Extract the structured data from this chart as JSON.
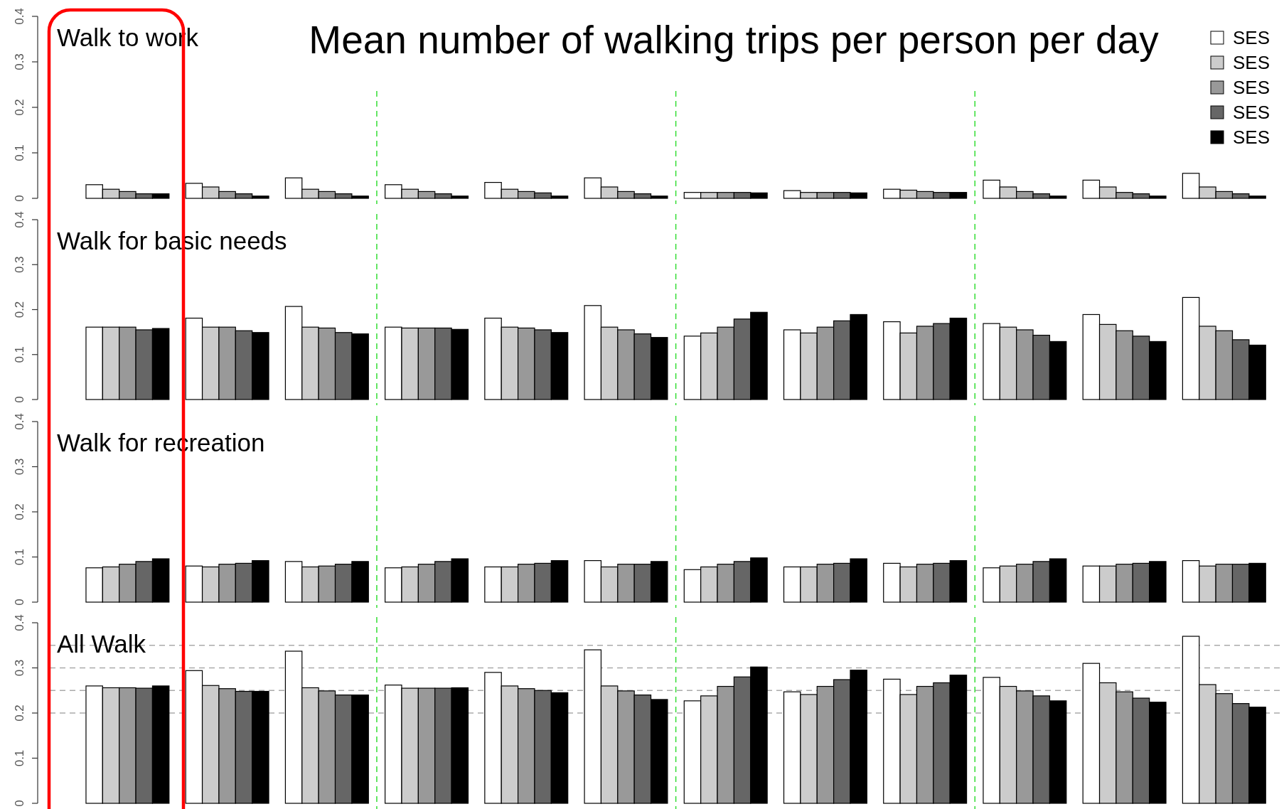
{
  "chart_data": [
    {
      "type": "bar",
      "title": "Walk to work",
      "annotations": [
        "Mean number of walking trips per person per day"
      ],
      "categories": [
        null,
        null,
        null,
        null,
        null,
        null,
        null,
        null,
        null,
        null,
        null,
        null
      ],
      "ylim": [
        0,
        0.4
      ],
      "yticks": [
        0,
        0.1,
        0.2,
        0.3,
        0.4
      ],
      "legend": "top right",
      "series": [
        {
          "name": "SES",
          "color": "#ffffff",
          "values": [
            0.03,
            0.033,
            0.045,
            0.03,
            0.035,
            0.045,
            0.013,
            0.017,
            0.02,
            0.04,
            0.04,
            0.055
          ]
        },
        {
          "name": "SES",
          "color": "#cccccc",
          "values": [
            0.02,
            0.025,
            0.02,
            0.02,
            0.02,
            0.025,
            0.013,
            0.013,
            0.018,
            0.025,
            0.025,
            0.025
          ]
        },
        {
          "name": "SES",
          "color": "#999999",
          "values": [
            0.015,
            0.015,
            0.015,
            0.015,
            0.015,
            0.015,
            0.013,
            0.013,
            0.015,
            0.015,
            0.013,
            0.015
          ]
        },
        {
          "name": "SES",
          "color": "#666666",
          "values": [
            0.01,
            0.01,
            0.01,
            0.01,
            0.012,
            0.01,
            0.013,
            0.013,
            0.013,
            0.01,
            0.01,
            0.01
          ]
        },
        {
          "name": "SES",
          "color": "#000000",
          "values": [
            0.01,
            0.005,
            0.005,
            0.005,
            0.005,
            0.005,
            0.012,
            0.012,
            0.013,
            0.005,
            0.005,
            0.005
          ]
        }
      ]
    },
    {
      "type": "bar",
      "title": "Walk for basic needs",
      "categories": [
        null,
        null,
        null,
        null,
        null,
        null,
        null,
        null,
        null,
        null,
        null,
        null
      ],
      "ylim": [
        0,
        0.4
      ],
      "yticks": [
        0,
        0.1,
        0.2,
        0.3,
        0.4
      ],
      "series": [
        {
          "color": "#ffffff",
          "values": [
            0.161,
            0.181,
            0.207,
            0.161,
            0.181,
            0.209,
            0.141,
            0.155,
            0.173,
            0.169,
            0.189,
            0.227
          ]
        },
        {
          "color": "#cccccc",
          "values": [
            0.161,
            0.161,
            0.161,
            0.159,
            0.161,
            0.161,
            0.148,
            0.148,
            0.148,
            0.161,
            0.167,
            0.163
          ]
        },
        {
          "color": "#999999",
          "values": [
            0.161,
            0.161,
            0.159,
            0.159,
            0.159,
            0.155,
            0.161,
            0.161,
            0.163,
            0.155,
            0.153,
            0.153
          ]
        },
        {
          "color": "#666666",
          "values": [
            0.155,
            0.153,
            0.149,
            0.159,
            0.155,
            0.146,
            0.179,
            0.175,
            0.169,
            0.143,
            0.141,
            0.133
          ]
        },
        {
          "color": "#000000",
          "values": [
            0.158,
            0.149,
            0.146,
            0.156,
            0.149,
            0.138,
            0.194,
            0.189,
            0.181,
            0.129,
            0.129,
            0.121
          ]
        }
      ]
    },
    {
      "type": "bar",
      "title": "Walk for recreation",
      "categories": [
        null,
        null,
        null,
        null,
        null,
        null,
        null,
        null,
        null,
        null,
        null,
        null
      ],
      "ylim": [
        0,
        0.4
      ],
      "yticks": [
        0,
        0.1,
        0.2,
        0.3,
        0.4
      ],
      "series": [
        {
          "color": "#ffffff",
          "values": [
            0.076,
            0.08,
            0.09,
            0.076,
            0.078,
            0.092,
            0.072,
            0.078,
            0.086,
            0.076,
            0.08,
            0.092
          ]
        },
        {
          "color": "#cccccc",
          "values": [
            0.078,
            0.078,
            0.078,
            0.078,
            0.078,
            0.078,
            0.078,
            0.078,
            0.078,
            0.08,
            0.08,
            0.08
          ]
        },
        {
          "color": "#999999",
          "values": [
            0.084,
            0.084,
            0.08,
            0.084,
            0.084,
            0.084,
            0.084,
            0.084,
            0.084,
            0.084,
            0.084,
            0.084
          ]
        },
        {
          "color": "#666666",
          "values": [
            0.09,
            0.086,
            0.084,
            0.09,
            0.086,
            0.084,
            0.09,
            0.086,
            0.086,
            0.09,
            0.086,
            0.084
          ]
        },
        {
          "color": "#000000",
          "values": [
            0.096,
            0.092,
            0.09,
            0.096,
            0.092,
            0.09,
            0.098,
            0.096,
            0.092,
            0.096,
            0.09,
            0.086
          ]
        }
      ]
    },
    {
      "type": "bar",
      "title": "All Walk",
      "categories": [
        null,
        null,
        null,
        null,
        null,
        null,
        null,
        null,
        null,
        null,
        null,
        null
      ],
      "ylim": [
        0,
        0.4
      ],
      "yticks": [
        0,
        0.1,
        0.2,
        0.3,
        0.4
      ],
      "series": [
        {
          "color": "#ffffff",
          "values": [
            0.26,
            0.294,
            0.337,
            0.262,
            0.29,
            0.34,
            0.227,
            0.247,
            0.275,
            0.279,
            0.31,
            0.37
          ]
        },
        {
          "color": "#cccccc",
          "values": [
            0.256,
            0.261,
            0.256,
            0.255,
            0.26,
            0.26,
            0.238,
            0.241,
            0.241,
            0.259,
            0.267,
            0.263
          ]
        },
        {
          "color": "#999999",
          "values": [
            0.256,
            0.254,
            0.249,
            0.255,
            0.254,
            0.249,
            0.259,
            0.259,
            0.259,
            0.249,
            0.247,
            0.243
          ]
        },
        {
          "color": "#666666",
          "values": [
            0.255,
            0.248,
            0.24,
            0.255,
            0.25,
            0.24,
            0.28,
            0.274,
            0.267,
            0.238,
            0.233,
            0.221
          ]
        },
        {
          "color": "#000000",
          "values": [
            0.26,
            0.248,
            0.24,
            0.256,
            0.245,
            0.23,
            0.302,
            0.295,
            0.284,
            0.227,
            0.224,
            0.213
          ]
        }
      ],
      "ref_lines": [
        {
          "axis": "y",
          "value": 0.2,
          "color": "#aaaaaa",
          "line_style": "dashed"
        },
        {
          "axis": "y",
          "value": 0.25,
          "color": "#aaaaaa",
          "line_style": "dashed"
        },
        {
          "axis": "y",
          "value": 0.3,
          "color": "#aaaaaa",
          "line_style": "dashed"
        },
        {
          "axis": "y",
          "value": 0.35,
          "color": "#aaaaaa",
          "line_style": "dashed"
        }
      ]
    }
  ]
}
